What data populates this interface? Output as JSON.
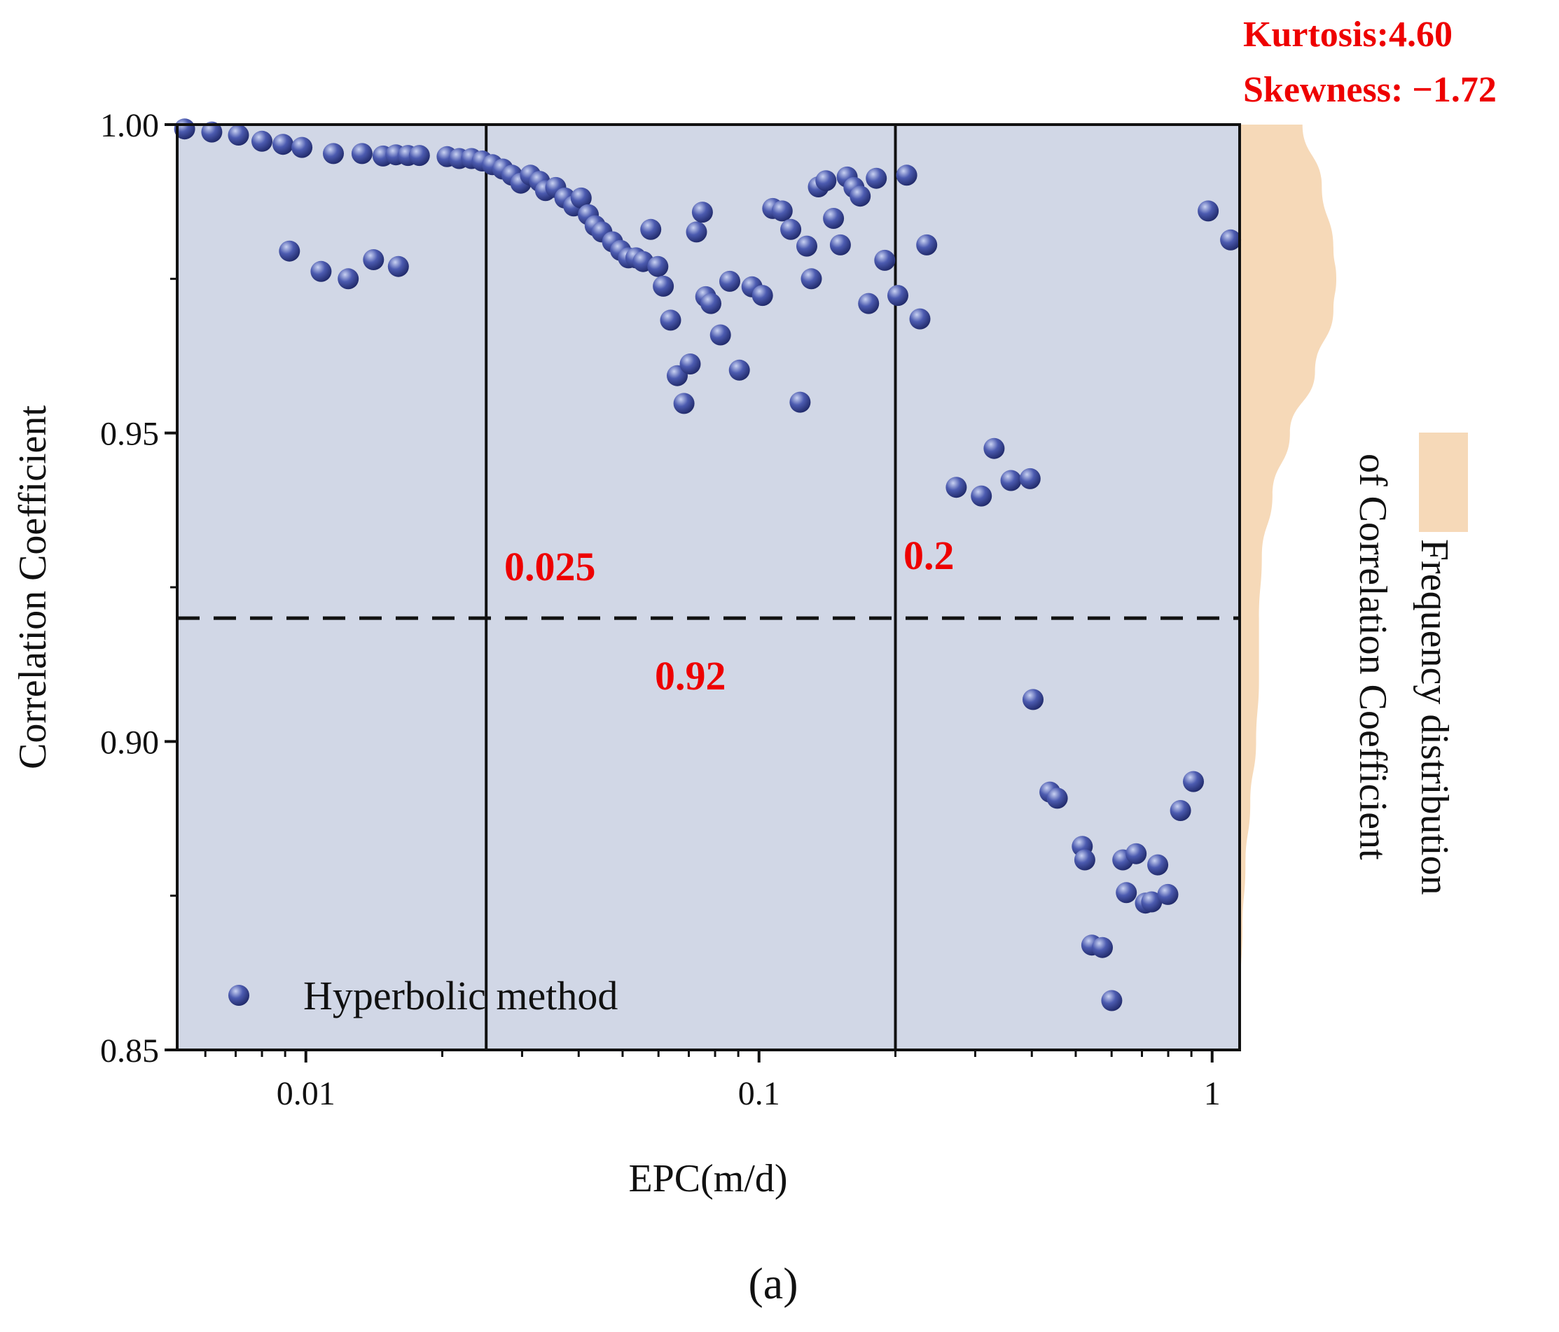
{
  "panel_label": "(a)",
  "stats": {
    "kurtosis": "Kurtosis:4.60",
    "skewness": "Skewness: −1.72"
  },
  "annotations": {
    "threshold_low": "0.025",
    "threshold_high": "0.2",
    "corr_threshold": "0.92"
  },
  "side_legend": {
    "line1": "Frequency distribution",
    "line2": "of  Correlation Coefficient"
  },
  "colors": {
    "plot_bg": "#d1d7e6",
    "marker": "#2e3a8c",
    "marker_highlight": "#c9d2f2",
    "dist_fill": "#f6d9b8",
    "annotation": "#ee0000"
  },
  "chart_data": {
    "type": "scatter",
    "title": "",
    "xlabel": "EPC(m/d)",
    "ylabel": "Correlation Coefficient",
    "xscale": "log",
    "xlim": [
      0.0052,
      1.15
    ],
    "ylim": [
      0.85,
      1.0
    ],
    "x_ticks": [
      {
        "value": 0.01,
        "label": "0.01"
      },
      {
        "value": 0.1,
        "label": "0.1"
      },
      {
        "value": 1,
        "label": "1"
      }
    ],
    "y_ticks": [
      {
        "value": 0.85,
        "label": "0.85"
      },
      {
        "value": 0.9,
        "label": "0.90"
      },
      {
        "value": 0.95,
        "label": "0.95"
      },
      {
        "value": 1.0,
        "label": "1.00"
      }
    ],
    "y_minor_ticks": [
      0.875,
      0.925,
      0.975
    ],
    "vlines": [
      0.025,
      0.2
    ],
    "hline": 0.92,
    "legend": {
      "label": "Hyperbolic method",
      "position": "bottom-left"
    },
    "series": [
      {
        "name": "Hyperbolic method",
        "x": [
          0.0054,
          0.0062,
          0.0071,
          0.008,
          0.0089,
          0.0098,
          0.0115,
          0.0133,
          0.0148,
          0.0158,
          0.0168,
          0.0178,
          0.0205,
          0.0218,
          0.0232,
          0.0245,
          0.0258,
          0.0272,
          0.0285,
          0.0298,
          0.0313,
          0.0328,
          0.0338,
          0.0356,
          0.0373,
          0.039,
          0.0405,
          0.042,
          0.0435,
          0.045,
          0.0475,
          0.0495,
          0.0515,
          0.0535,
          0.0555,
          0.0577,
          0.0598,
          0.0615,
          0.0638,
          0.066,
          0.0683,
          0.0705,
          0.0728,
          0.075,
          0.0763,
          0.0783,
          0.0822,
          0.0862,
          0.0905,
          0.0965,
          0.1018,
          0.1072,
          0.1125,
          0.1175,
          0.1232,
          0.1275,
          0.1305,
          0.1352,
          0.1405,
          0.146,
          0.1512,
          0.1565,
          0.162,
          0.1672,
          0.1745,
          0.1815,
          0.1895,
          0.2025,
          0.2118,
          0.2265,
          0.2345,
          0.2725,
          0.3095,
          0.3302,
          0.3598,
          0.3965,
          0.4025,
          0.4385,
          0.4552,
          0.5168,
          0.5235,
          0.5425,
          0.5725,
          0.6005,
          0.6352,
          0.6465,
          0.6795,
          0.7125,
          0.7352,
          0.7585,
          0.7985,
          0.8515,
          0.9092,
          0.9802,
          1.0983,
          0.0092,
          0.0108,
          0.0124,
          0.0141,
          0.016
        ],
        "y": [
          0.9993,
          0.9988,
          0.9983,
          0.9973,
          0.9968,
          0.9963,
          0.9953,
          0.9953,
          0.9949,
          0.9951,
          0.995,
          0.995,
          0.9948,
          0.9945,
          0.9945,
          0.9941,
          0.9935,
          0.9928,
          0.9918,
          0.9905,
          0.9918,
          0.9908,
          0.9893,
          0.9898,
          0.9881,
          0.9868,
          0.9881,
          0.9854,
          0.9836,
          0.9826,
          0.981,
          0.9796,
          0.9784,
          0.9784,
          0.9778,
          0.983,
          0.977,
          0.9738,
          0.9683,
          0.9593,
          0.9548,
          0.9612,
          0.9826,
          0.9858,
          0.9721,
          0.971,
          0.9659,
          0.9746,
          0.9602,
          0.9737,
          0.9723,
          0.9864,
          0.986,
          0.983,
          0.955,
          0.9803,
          0.975,
          0.9899,
          0.9909,
          0.9848,
          0.9805,
          0.9915,
          0.9898,
          0.9884,
          0.971,
          0.9913,
          0.978,
          0.9723,
          0.9918,
          0.9685,
          0.9805,
          0.9412,
          0.9398,
          0.9475,
          0.9423,
          0.9426,
          0.9068,
          0.8918,
          0.8908,
          0.883,
          0.8808,
          0.867,
          0.8666,
          0.858,
          0.8808,
          0.8755,
          0.8818,
          0.8738,
          0.874,
          0.88,
          0.8752,
          0.8888,
          0.8935,
          0.986,
          0.9813,
          0.9795,
          0.9762,
          0.975,
          0.9781,
          0.977
        ]
      }
    ],
    "distribution": {
      "label": "Frequency distribution of Correlation Coefficient",
      "y": [
        1.0,
        0.99,
        0.98,
        0.975,
        0.97,
        0.96,
        0.95,
        0.94,
        0.93,
        0.92,
        0.91,
        0.9,
        0.89,
        0.88,
        0.87,
        0.86
      ],
      "density": [
        0.65,
        0.85,
        0.97,
        1.0,
        0.97,
        0.78,
        0.52,
        0.34,
        0.23,
        0.2,
        0.2,
        0.17,
        0.11,
        0.06,
        0.03,
        0.01
      ]
    }
  }
}
